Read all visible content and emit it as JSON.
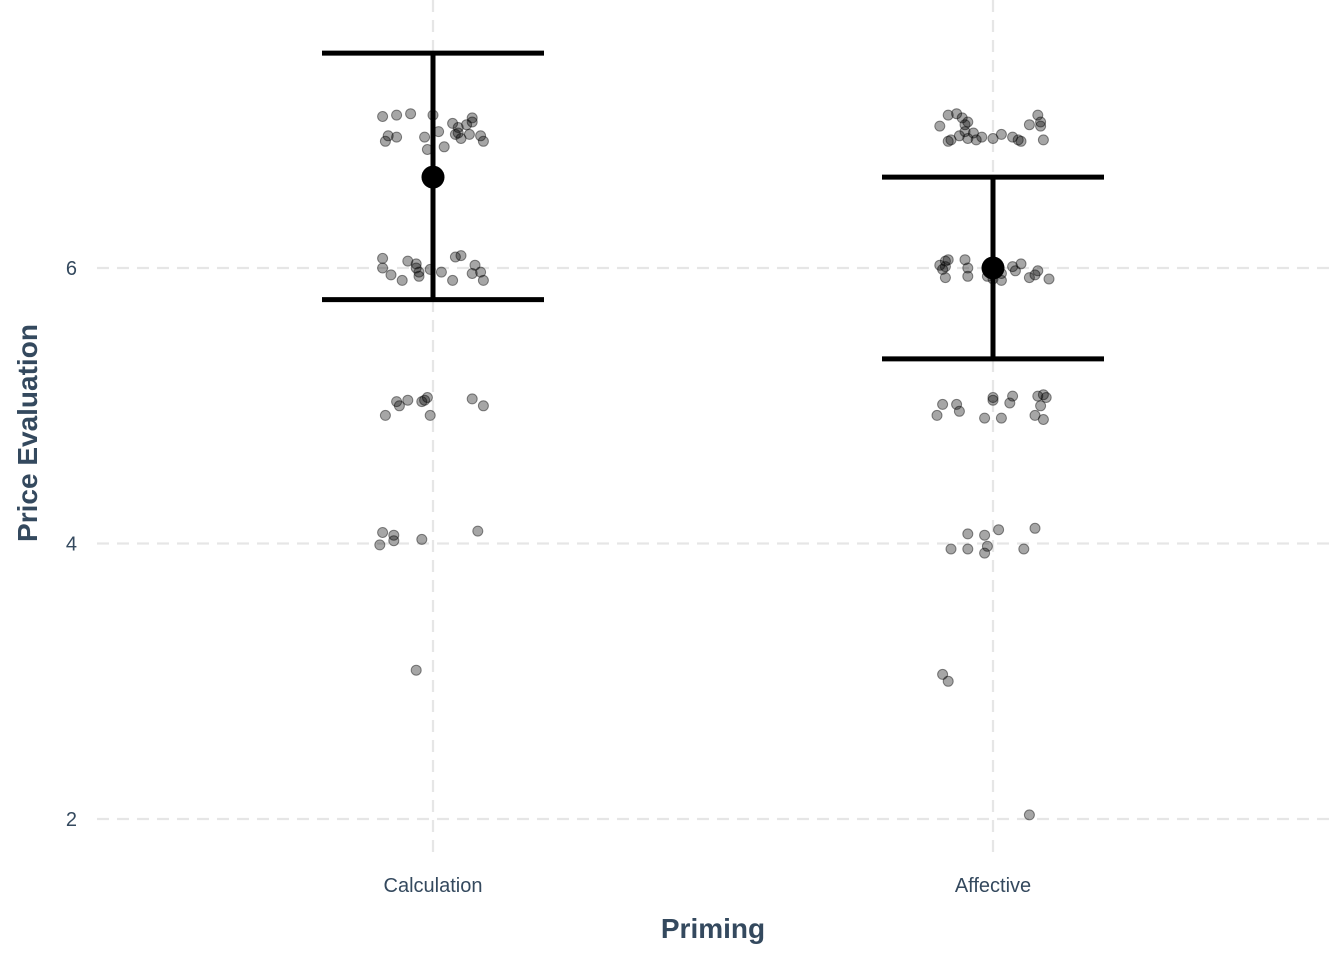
{
  "chart_data": {
    "type": "scatter",
    "title": "",
    "xlabel": "Priming",
    "ylabel": "Price Evaluation",
    "categories": [
      "Calculation",
      "Affective"
    ],
    "y_ticks": [
      2,
      4,
      6
    ],
    "ylim": [
      1.68,
      7.85
    ],
    "grid": "dashed major gridlines",
    "legend": "none",
    "summary": [
      {
        "category": "Calculation",
        "mean": 6.66,
        "lower": 5.77,
        "upper": 7.56
      },
      {
        "category": "Affective",
        "mean": 6.0,
        "lower": 5.34,
        "upper": 6.66
      }
    ],
    "series": [
      {
        "category": "Calculation",
        "points": [
          [
            -0.09,
            7.1
          ],
          [
            -0.065,
            7.11
          ],
          [
            -0.04,
            7.12
          ],
          [
            0.0,
            7.11
          ],
          [
            0.07,
            7.09
          ],
          [
            0.035,
            7.05
          ],
          [
            0.045,
            7.02
          ],
          [
            0.06,
            7.04
          ],
          [
            -0.065,
            6.95
          ],
          [
            -0.08,
            6.96
          ],
          [
            -0.085,
            6.92
          ],
          [
            0.01,
            6.99
          ],
          [
            0.04,
            6.97
          ],
          [
            0.05,
            6.94
          ],
          [
            0.065,
            6.97
          ],
          [
            0.085,
            6.96
          ],
          [
            0.09,
            6.92
          ],
          [
            -0.015,
            6.95
          ],
          [
            0.07,
            7.06
          ],
          [
            0.045,
            6.98
          ],
          [
            -0.09,
            6.07
          ],
          [
            -0.09,
            6.0
          ],
          [
            -0.075,
            5.95
          ],
          [
            -0.045,
            6.05
          ],
          [
            -0.03,
            6.03
          ],
          [
            -0.03,
            6.0
          ],
          [
            -0.025,
            5.97
          ],
          [
            -0.025,
            5.94
          ],
          [
            -0.055,
            5.91
          ],
          [
            -0.005,
            5.99
          ],
          [
            0.015,
            5.97
          ],
          [
            0.04,
            6.08
          ],
          [
            0.05,
            6.09
          ],
          [
            0.035,
            5.91
          ],
          [
            0.075,
            6.02
          ],
          [
            0.085,
            5.97
          ],
          [
            0.07,
            5.96
          ],
          [
            0.09,
            5.91
          ],
          [
            -0.085,
            4.93
          ],
          [
            -0.065,
            5.03
          ],
          [
            -0.06,
            5.0
          ],
          [
            -0.045,
            5.04
          ],
          [
            -0.02,
            5.03
          ],
          [
            -0.015,
            5.04
          ],
          [
            -0.01,
            5.06
          ],
          [
            -0.005,
            4.93
          ],
          [
            0.07,
            5.05
          ],
          [
            0.09,
            5.0
          ],
          [
            -0.095,
            3.99
          ],
          [
            -0.09,
            4.08
          ],
          [
            -0.07,
            4.06
          ],
          [
            -0.07,
            4.02
          ],
          [
            -0.02,
            4.03
          ],
          [
            0.08,
            4.09
          ],
          [
            -0.03,
            3.08
          ],
          [
            -0.01,
            6.86
          ],
          [
            0.02,
            6.88
          ]
        ]
      },
      {
        "category": "Affective",
        "points": [
          [
            -0.095,
            7.03
          ],
          [
            -0.08,
            7.11
          ],
          [
            -0.065,
            7.12
          ],
          [
            -0.055,
            7.09
          ],
          [
            -0.05,
            7.04
          ],
          [
            -0.045,
            7.06
          ],
          [
            -0.05,
            6.99
          ],
          [
            -0.06,
            6.96
          ],
          [
            -0.035,
            6.98
          ],
          [
            -0.075,
            6.93
          ],
          [
            -0.08,
            6.92
          ],
          [
            -0.03,
            6.93
          ],
          [
            0.0,
            6.94
          ],
          [
            0.015,
            6.97
          ],
          [
            0.035,
            6.95
          ],
          [
            0.05,
            6.92
          ],
          [
            0.065,
            7.04
          ],
          [
            0.08,
            7.11
          ],
          [
            0.085,
            7.06
          ],
          [
            0.09,
            6.93
          ],
          [
            -0.02,
            6.95
          ],
          [
            -0.045,
            6.94
          ],
          [
            0.045,
            6.93
          ],
          [
            0.085,
            7.03
          ],
          [
            -0.095,
            6.02
          ],
          [
            -0.09,
            5.99
          ],
          [
            -0.085,
            6.05
          ],
          [
            -0.08,
            6.06
          ],
          [
            -0.085,
            5.93
          ],
          [
            -0.05,
            6.06
          ],
          [
            -0.045,
            6.0
          ],
          [
            -0.045,
            5.94
          ],
          [
            -0.01,
            5.94
          ],
          [
            0.0,
            5.92
          ],
          [
            0.015,
            5.91
          ],
          [
            0.035,
            6.01
          ],
          [
            0.05,
            6.03
          ],
          [
            0.04,
            5.98
          ],
          [
            0.065,
            5.93
          ],
          [
            0.08,
            5.98
          ],
          [
            0.075,
            5.95
          ],
          [
            0.1,
            5.92
          ],
          [
            0.015,
            5.96
          ],
          [
            -0.085,
            6.01
          ],
          [
            -0.1,
            4.93
          ],
          [
            -0.09,
            5.01
          ],
          [
            -0.065,
            5.01
          ],
          [
            -0.06,
            4.96
          ],
          [
            -0.015,
            4.91
          ],
          [
            0.0,
            5.06
          ],
          [
            0.0,
            5.04
          ],
          [
            0.015,
            4.91
          ],
          [
            0.03,
            5.02
          ],
          [
            0.035,
            5.07
          ],
          [
            0.075,
            4.93
          ],
          [
            0.08,
            5.07
          ],
          [
            0.09,
            5.08
          ],
          [
            0.095,
            5.06
          ],
          [
            0.085,
            5.0
          ],
          [
            0.09,
            4.9
          ],
          [
            -0.075,
            3.96
          ],
          [
            -0.045,
            4.07
          ],
          [
            -0.045,
            3.96
          ],
          [
            -0.015,
            4.06
          ],
          [
            -0.015,
            3.93
          ],
          [
            -0.01,
            3.98
          ],
          [
            0.01,
            4.1
          ],
          [
            0.055,
            3.96
          ],
          [
            0.075,
            4.11
          ],
          [
            -0.09,
            3.05
          ],
          [
            -0.08,
            3.0
          ],
          [
            0.065,
            2.03
          ]
        ]
      }
    ]
  }
}
